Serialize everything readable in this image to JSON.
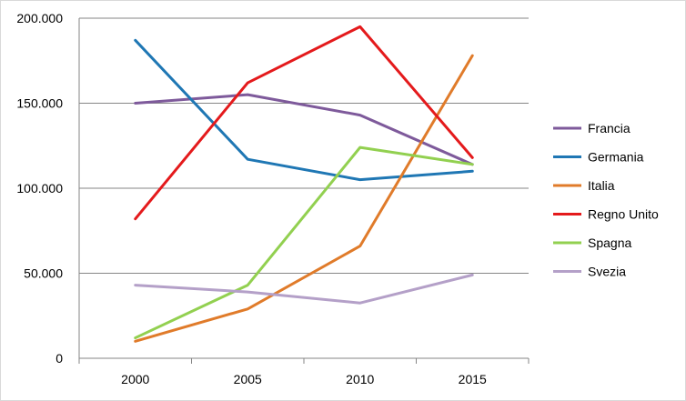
{
  "chart_data": {
    "type": "line",
    "title": "",
    "xlabel": "",
    "ylabel": "",
    "categories": [
      "2000",
      "2005",
      "2010",
      "2015"
    ],
    "ylim": [
      0,
      200000
    ],
    "yticks": [
      0,
      50000,
      100000,
      150000,
      200000
    ],
    "ytick_labels": [
      "0",
      "50.000",
      "100.000",
      "150.000",
      "200.000"
    ],
    "grid": "horizontal",
    "legend_position": "right",
    "series": [
      {
        "name": "Francia",
        "color": "#7e5a9b",
        "values": [
          150000,
          155000,
          143000,
          114000
        ]
      },
      {
        "name": "Germania",
        "color": "#1f77b4",
        "values": [
          187000,
          117000,
          105000,
          110000
        ]
      },
      {
        "name": "Italia",
        "color": "#e07b2a",
        "values": [
          10000,
          29000,
          66000,
          178000
        ]
      },
      {
        "name": "Regno Unito",
        "color": "#e41a1c",
        "values": [
          82000,
          162000,
          195000,
          118000
        ]
      },
      {
        "name": "Spagna",
        "color": "#92d050",
        "values": [
          12000,
          43000,
          124000,
          114000
        ]
      },
      {
        "name": "Svezia",
        "color": "#b4a0c8",
        "values": [
          43000,
          39000,
          32500,
          49000
        ]
      }
    ]
  }
}
